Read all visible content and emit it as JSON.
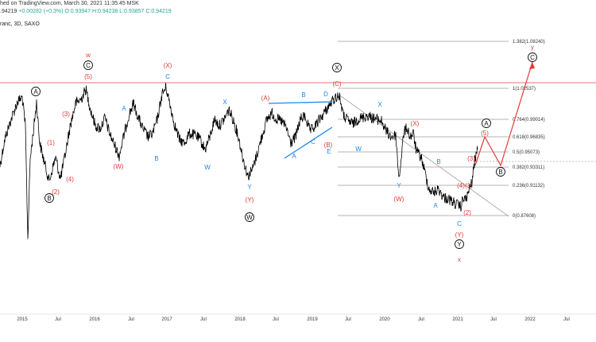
{
  "header": {
    "line1": "hed on TradingView.com, March 30, 2021 11:35:45 MSK",
    "line2_last": ".94219",
    "line2_change": "+0.00282 (+0.3%)",
    "line2_ohlc": "O:0.93947 H:0.94238 L:0.93857 C:0.94219",
    "line3": "ranc, 3D, SAXO"
  },
  "colors": {
    "red": "#e53935",
    "blue": "#1e88e5",
    "black": "#111111",
    "resistance_line": "#e57373",
    "fib_line": "#9e9e9e",
    "price_line": "#000000"
  },
  "chart_data": {
    "type": "line",
    "title": "",
    "x_ticks": [
      "2015",
      "Jul",
      "2016",
      "Jul",
      "2017",
      "Jul",
      "2018",
      "Jul",
      "2019",
      "Jul",
      "2020",
      "Jul",
      "2021",
      "Jul",
      "2022",
      "Jul"
    ],
    "fib_levels": [
      {
        "label": "1.382(1.08240)",
        "value": 1.0824
      },
      {
        "label": "1(1.02537)",
        "value": 1.02537
      },
      {
        "label": "0.764(0.99014)",
        "value": 0.99014
      },
      {
        "label": "0.618(0.96835)",
        "value": 0.96835
      },
      {
        "label": "0.5(0.95073)",
        "value": 0.95073
      },
      {
        "label": "0.382(0.93311)",
        "value": 0.93311
      },
      {
        "label": "0.236(0.91132)",
        "value": 0.91132
      },
      {
        "label": "0(0.87608)",
        "value": 0.87608
      }
    ],
    "wave_labels": [
      {
        "text": "w",
        "color": "red"
      },
      {
        "text": "C",
        "color": "black",
        "circled": true
      },
      {
        "text": "(5)",
        "color": "red"
      },
      {
        "text": "(X)",
        "color": "red"
      },
      {
        "text": "C",
        "color": "blue"
      },
      {
        "text": "A",
        "color": "black",
        "circled": true
      },
      {
        "text": "A",
        "color": "blue"
      },
      {
        "text": "X",
        "color": "blue"
      },
      {
        "text": "(3)",
        "color": "red"
      },
      {
        "text": "(1)",
        "color": "red"
      },
      {
        "text": "(4)",
        "color": "red"
      },
      {
        "text": "(2)",
        "color": "red"
      },
      {
        "text": "B",
        "color": "black",
        "circled": true
      },
      {
        "text": "(W)",
        "color": "red"
      },
      {
        "text": "B",
        "color": "blue"
      },
      {
        "text": "W",
        "color": "blue"
      },
      {
        "text": "Y",
        "color": "blue"
      },
      {
        "text": "(Y)",
        "color": "red"
      },
      {
        "text": "W",
        "color": "black",
        "circled": true
      },
      {
        "text": "(A)",
        "color": "red"
      },
      {
        "text": "B",
        "color": "blue"
      },
      {
        "text": "D",
        "color": "blue"
      },
      {
        "text": "E",
        "color": "blue"
      },
      {
        "text": "C",
        "color": "blue"
      },
      {
        "text": "A",
        "color": "blue"
      },
      {
        "text": "(B)",
        "color": "red"
      },
      {
        "text": "X",
        "color": "black",
        "circled": true
      },
      {
        "text": "(C)",
        "color": "red"
      },
      {
        "text": "X",
        "color": "blue"
      },
      {
        "text": "W",
        "color": "blue"
      },
      {
        "text": "(X)",
        "color": "red"
      },
      {
        "text": "Y",
        "color": "blue"
      },
      {
        "text": "(W)",
        "color": "red"
      },
      {
        "text": "B",
        "color": "blue"
      },
      {
        "text": "A",
        "color": "blue"
      },
      {
        "text": "(3)",
        "color": "red"
      },
      {
        "text": "(1)",
        "color": "red"
      },
      {
        "text": "(4)",
        "color": "red"
      },
      {
        "text": "(2)",
        "color": "red"
      },
      {
        "text": "C",
        "color": "blue"
      },
      {
        "text": "(Y)",
        "color": "red"
      },
      {
        "text": "Y",
        "color": "black",
        "circled": true
      },
      {
        "text": "x",
        "color": "red"
      },
      {
        "text": "(5)",
        "color": "red"
      },
      {
        "text": "A",
        "color": "black",
        "circled": true
      },
      {
        "text": "B",
        "color": "black",
        "circled": true
      },
      {
        "text": "C",
        "color": "black",
        "circled": true
      },
      {
        "text": "y",
        "color": "red"
      }
    ],
    "grid": false
  }
}
